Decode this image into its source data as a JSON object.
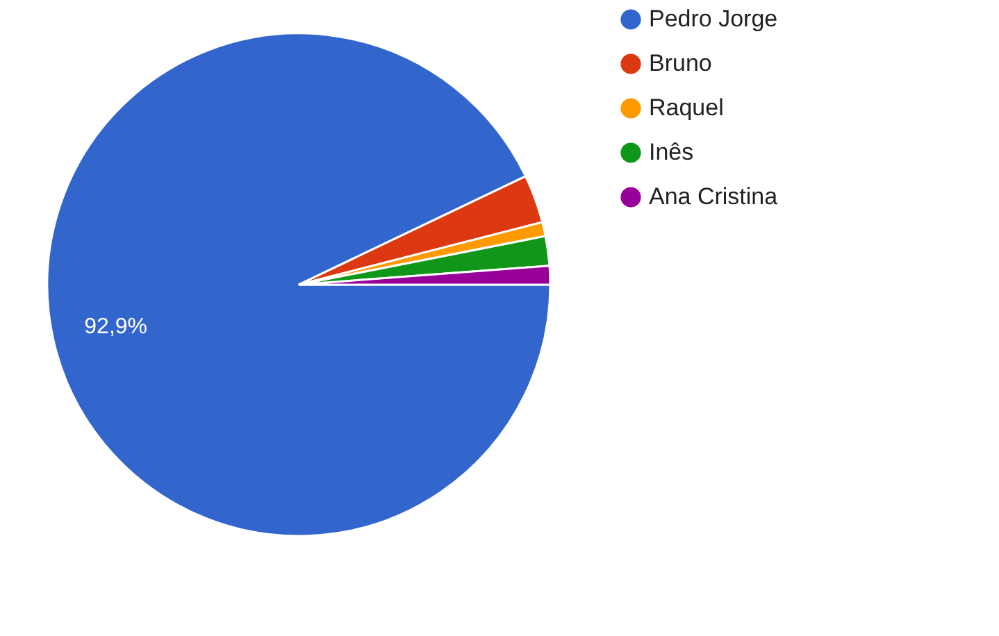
{
  "chart_data": {
    "type": "pie",
    "categories": [
      "Pedro Jorge",
      "Bruno",
      "Raquel",
      "Inês",
      "Ana Cristina"
    ],
    "values": [
      92.9,
      3.1,
      0.9,
      1.9,
      1.2
    ],
    "colors": [
      "#3366cc",
      "#dc3912",
      "#ff9900",
      "#109618",
      "#990099"
    ],
    "value_labels": [
      "92,9%",
      null,
      null,
      null,
      null
    ],
    "legend": "right"
  }
}
